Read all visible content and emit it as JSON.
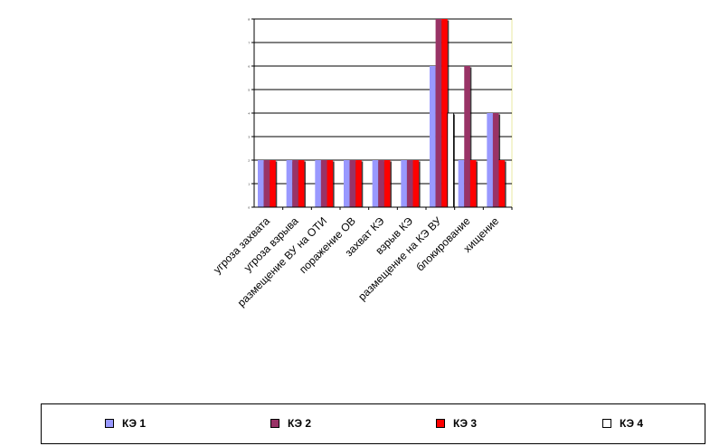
{
  "chart_data": {
    "type": "bar",
    "title": "",
    "xlabel": "",
    "ylabel": "",
    "ylim": [
      0,
      8
    ],
    "grid": true,
    "legend_position": "bottom",
    "categories": [
      "угроза захвата",
      "угроза взрыва",
      "размещение ВУ на ОТИ",
      "поражение ОВ",
      "захват КЭ",
      "взрыв КЭ",
      "размещение на КЭ ВУ",
      "блокирование",
      "хищение"
    ],
    "series": [
      {
        "name": "КЭ 1",
        "color": "#9999ff",
        "values": [
          2,
          2,
          2,
          2,
          2,
          2,
          6,
          2,
          4
        ]
      },
      {
        "name": "КЭ 2",
        "color": "#993366",
        "values": [
          2,
          2,
          2,
          2,
          2,
          2,
          8,
          6,
          4
        ]
      },
      {
        "name": "КЭ 3",
        "color": "#ff0000",
        "values": [
          2,
          2,
          2,
          2,
          2,
          2,
          8,
          2,
          2
        ]
      },
      {
        "name": "КЭ 4",
        "color": "#ffffff",
        "values": [
          0,
          0,
          0,
          0,
          0,
          0,
          4,
          0,
          0
        ]
      }
    ]
  }
}
